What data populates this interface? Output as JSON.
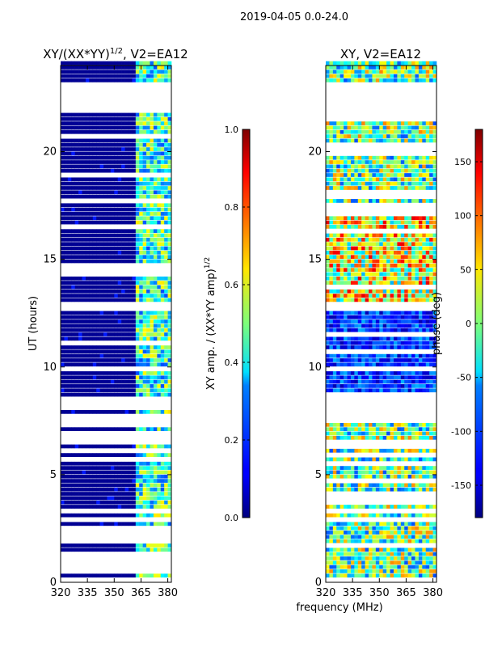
{
  "suptitle": "2019-04-05 0.0-24.0",
  "xlabel": "frequency (MHz)",
  "chart_data": [
    {
      "type": "heatmap",
      "title": "XY/(XX*YY)^1/2, V2=EA12",
      "title_main": "XY/(XX*YY)",
      "title_exp": "1/2",
      "title_tail": ", V2=EA12",
      "xlabel": "frequency (MHz)",
      "ylabel": "UT (hours)",
      "xlim": [
        320,
        382
      ],
      "ylim": [
        0,
        24
      ],
      "xticks": [
        320,
        335,
        350,
        365,
        380
      ],
      "yticks": [
        0,
        5,
        10,
        15,
        20
      ],
      "colorbar": {
        "label": "XY amp. / (XX*YY amp)^1/2",
        "label_main": "XY amp. / (XX*YY amp)",
        "label_exp": "1/2",
        "range": [
          0.0,
          1.0
        ],
        "ticks": [
          "0.0",
          "0.2",
          "0.4",
          "0.6",
          "0.8",
          "1.0"
        ],
        "tick_values": [
          0.0,
          0.2,
          0.4,
          0.6,
          0.8,
          1.0
        ],
        "colormap": "jet"
      },
      "flagged_time_ranges_hours": [
        [
          21.8,
          23.2
        ],
        [
          8.0,
          8.7
        ],
        [
          12.6,
          13.0
        ]
      ],
      "notes": "Amplitude mostly near 0 (dark blue) below 362 MHz; bright channels between ~363 and 381 MHz"
    },
    {
      "type": "heatmap",
      "title": "XY, V2=EA12",
      "xlabel": "frequency (MHz)",
      "ylabel": "",
      "xlim": [
        320,
        382
      ],
      "ylim": [
        0,
        24
      ],
      "xticks": [
        320,
        335,
        350,
        365,
        380
      ],
      "yticks": [
        0,
        5,
        10,
        15,
        20
      ],
      "colorbar": {
        "label": "phase (deg)",
        "range": [
          -180,
          180
        ],
        "ticks": [
          "-150",
          "-100",
          "-50",
          "0",
          "50",
          "100",
          "150"
        ],
        "tick_values": [
          -150,
          -100,
          -50,
          0,
          50,
          100,
          150
        ],
        "colormap": "jet"
      },
      "flagged_time_ranges_hours": [
        [
          21.8,
          23.2
        ],
        [
          8.0,
          8.7
        ],
        [
          12.6,
          13.0
        ]
      ],
      "notes": "Phase varies widely; mostly dark blue between ~8.7 and 12.6 hours"
    }
  ]
}
